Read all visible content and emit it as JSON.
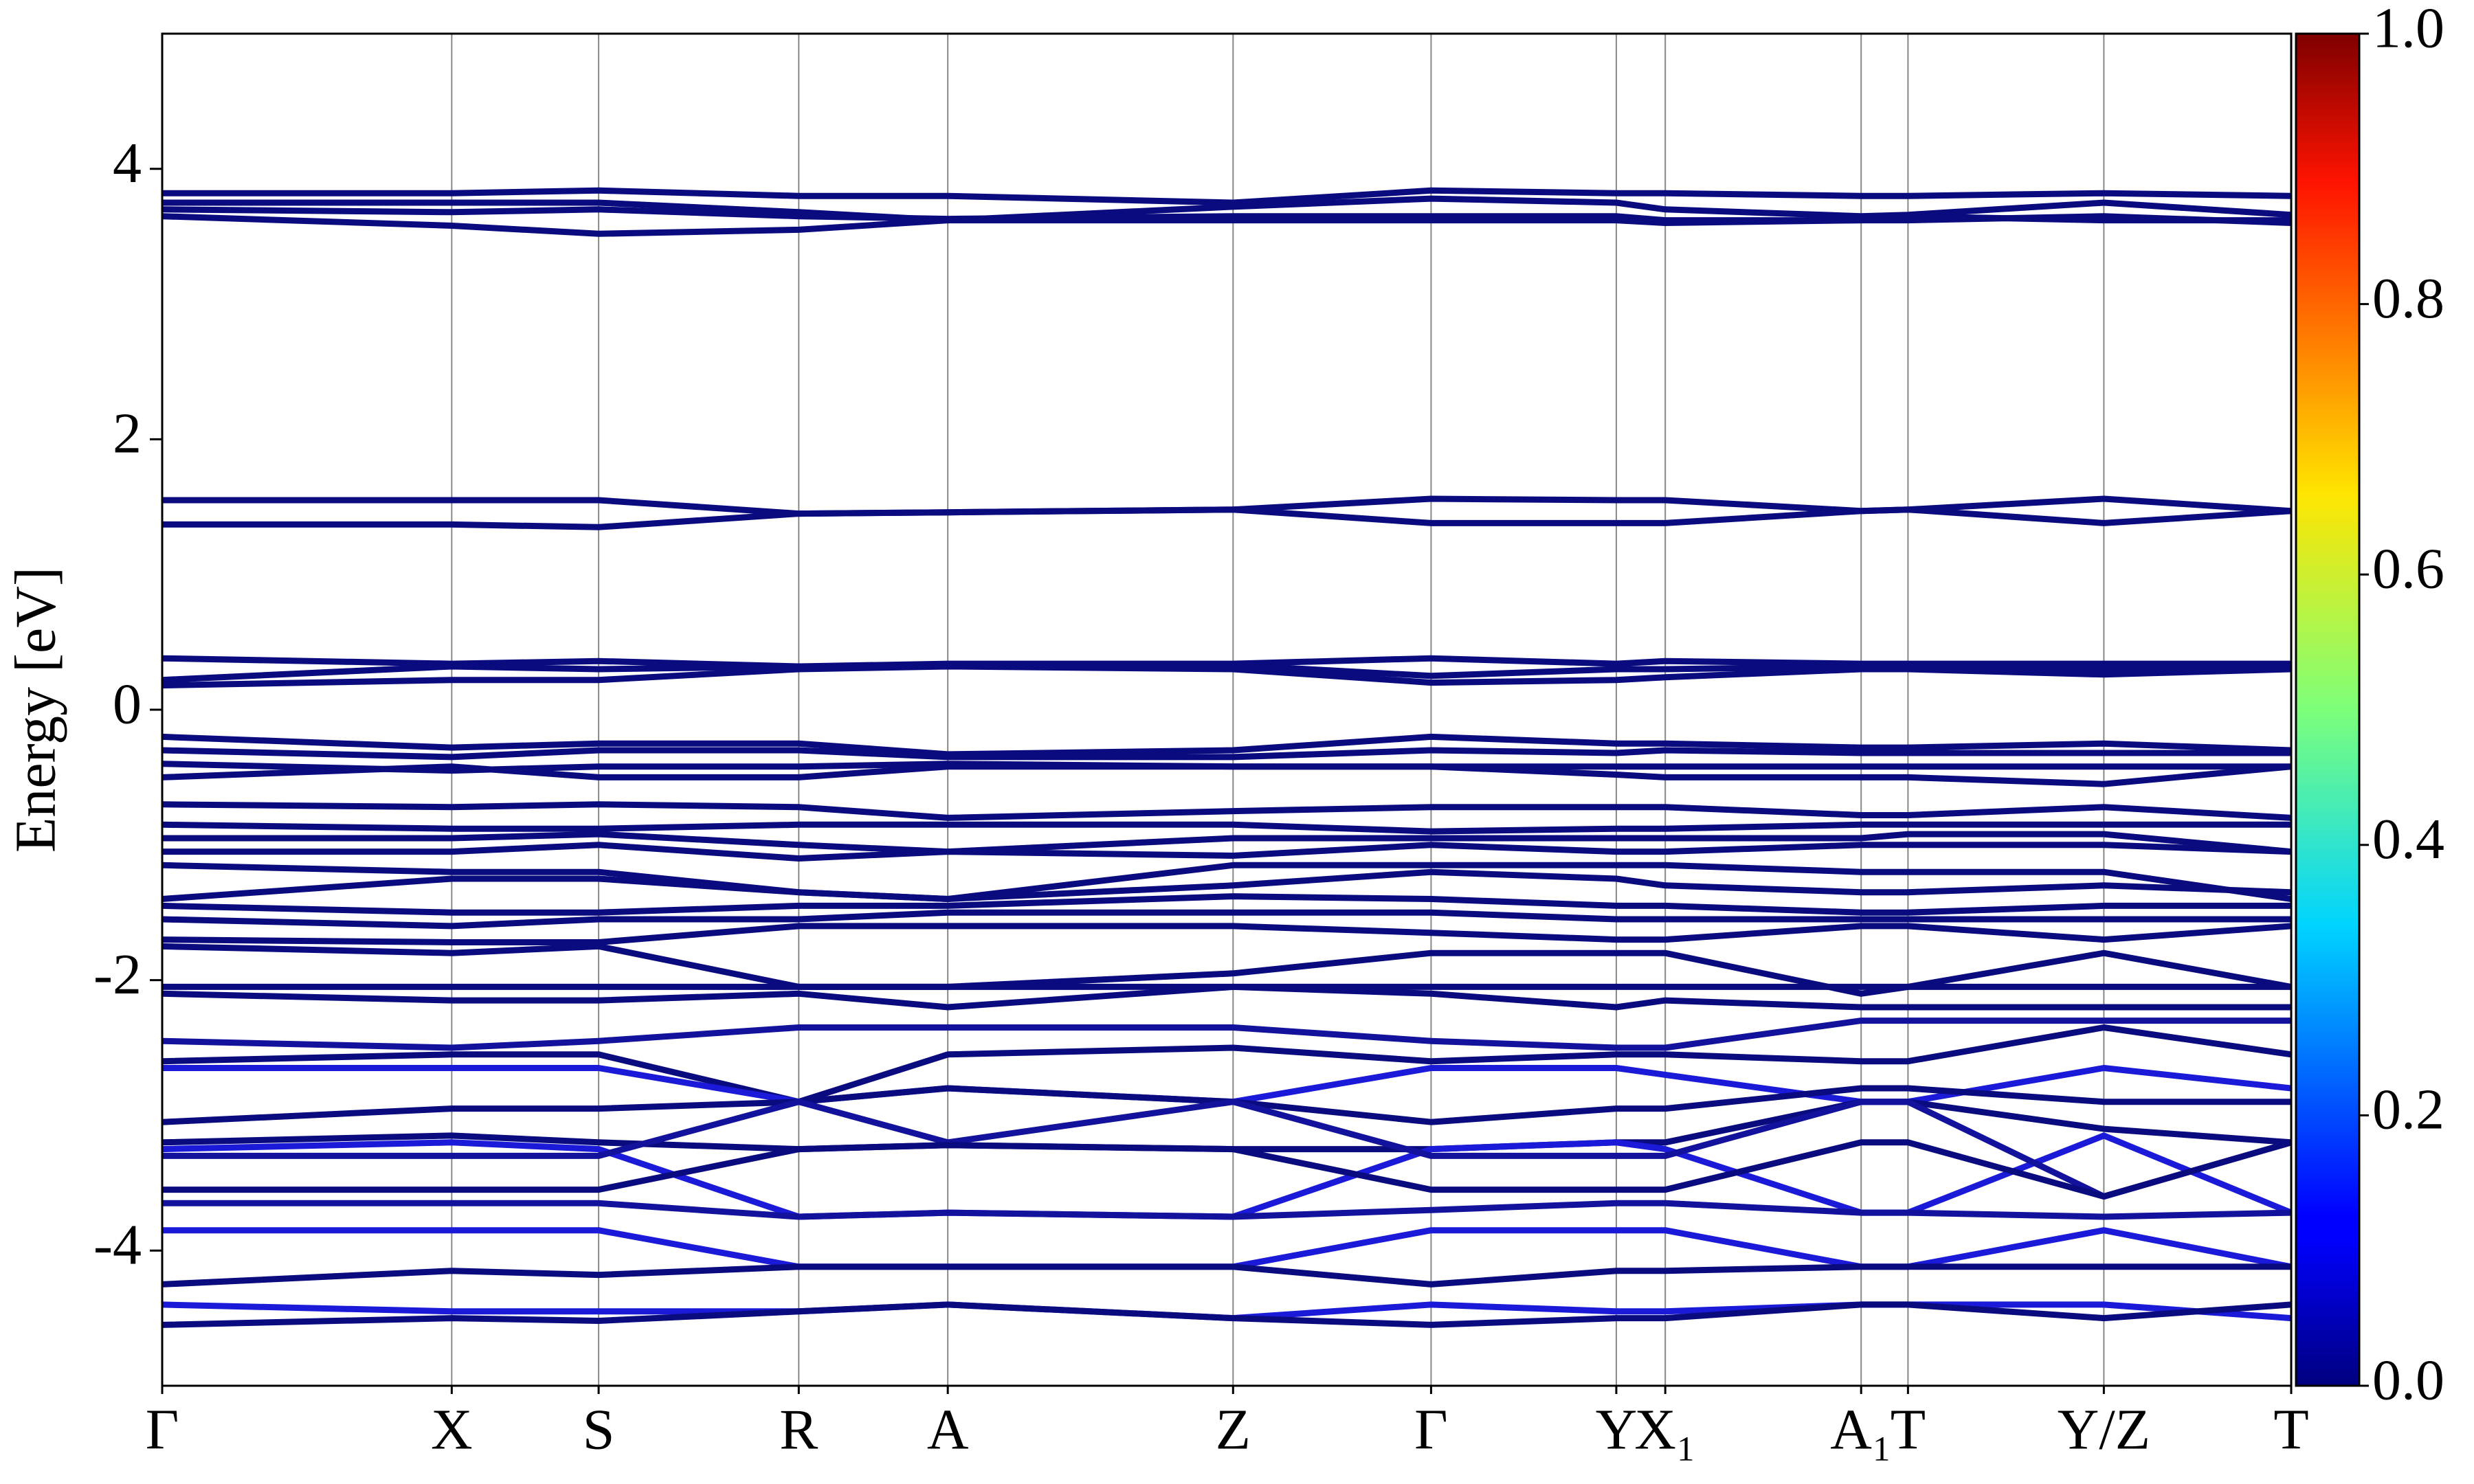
{
  "chart_data": {
    "type": "line",
    "ylabel": "Energy [eV]",
    "xlim": [
      0,
      1
    ],
    "xticks": [
      {
        "value": 0,
        "label": "Γ"
      },
      {
        "value": 0.136,
        "label": "X"
      },
      {
        "value": 0.205,
        "label": "S"
      },
      {
        "value": 0.299,
        "label": "R"
      },
      {
        "value": 0.369,
        "label": "A"
      },
      {
        "value": 0.503,
        "label": "Z"
      },
      {
        "value": 0.596,
        "label": "Γ"
      },
      {
        "value": 0.683,
        "label": "Y"
      },
      {
        "value": 0.706,
        "label": "X₁"
      },
      {
        "value": 0.798,
        "label": "A₁"
      },
      {
        "value": 0.82,
        "label": "T"
      },
      {
        "value": 0.912,
        "label": "Y/Z"
      },
      {
        "value": 1,
        "label": "T"
      }
    ],
    "ylim": [
      -5,
      5
    ],
    "yticks": [
      -4,
      -2,
      0,
      2,
      4
    ],
    "grid": "x",
    "x": [
      0,
      0.136,
      0.205,
      0.299,
      0.369,
      0.503,
      0.596,
      0.683,
      0.706,
      0.798,
      0.82,
      0.912,
      1
    ],
    "colorbar": {
      "colormap": "jet",
      "lim": [
        0,
        1
      ],
      "ticks": [
        {
          "value": 0,
          "label": "0.0"
        },
        {
          "value": 0.2,
          "label": "0.2"
        },
        {
          "value": 0.4,
          "label": "0.4"
        },
        {
          "value": 0.6,
          "label": "0.6"
        },
        {
          "value": 0.8,
          "label": "0.8"
        },
        {
          "value": 1,
          "label": "1.0"
        }
      ]
    },
    "series": [
      {
        "color": "#0b0b80",
        "values": [
          3.82,
          3.82,
          3.84,
          3.8,
          3.8,
          3.75,
          3.84,
          3.82,
          3.82,
          3.8,
          3.8,
          3.82,
          3.8
        ]
      },
      {
        "color": "#0b0b80",
        "values": [
          3.75,
          3.75,
          3.75,
          3.68,
          3.62,
          3.72,
          3.78,
          3.75,
          3.7,
          3.65,
          3.66,
          3.75,
          3.66
        ]
      },
      {
        "color": "#0b0b80",
        "values": [
          3.7,
          3.68,
          3.7,
          3.65,
          3.63,
          3.65,
          3.65,
          3.65,
          3.62,
          3.62,
          3.65,
          3.62,
          3.62
        ]
      },
      {
        "color": "#0b0b80",
        "values": [
          3.65,
          3.58,
          3.52,
          3.55,
          3.62,
          3.62,
          3.62,
          3.62,
          3.6,
          3.62,
          3.62,
          3.65,
          3.6
        ]
      },
      {
        "color": "#0b0b80",
        "values": [
          1.55,
          1.55,
          1.55,
          1.45,
          1.46,
          1.48,
          1.56,
          1.55,
          1.55,
          1.47,
          1.48,
          1.56,
          1.47
        ]
      },
      {
        "color": "#0b0b80",
        "values": [
          1.37,
          1.37,
          1.35,
          1.45,
          1.46,
          1.48,
          1.38,
          1.38,
          1.38,
          1.47,
          1.48,
          1.38,
          1.47
        ]
      },
      {
        "color": "#0b0b80",
        "values": [
          0.38,
          0.34,
          0.36,
          0.32,
          0.34,
          0.34,
          0.38,
          0.34,
          0.36,
          0.34,
          0.34,
          0.34,
          0.34
        ]
      },
      {
        "color": "#0b0b80",
        "values": [
          0.22,
          0.32,
          0.3,
          0.32,
          0.32,
          0.33,
          0.25,
          0.3,
          0.3,
          0.32,
          0.32,
          0.3,
          0.32
        ]
      },
      {
        "color": "#0b0b80",
        "values": [
          0.18,
          0.22,
          0.22,
          0.3,
          0.32,
          0.3,
          0.2,
          0.22,
          0.24,
          0.3,
          0.3,
          0.26,
          0.3
        ]
      },
      {
        "color": "#0b0b80",
        "values": [
          -0.2,
          -0.28,
          -0.25,
          -0.25,
          -0.33,
          -0.3,
          -0.2,
          -0.25,
          -0.25,
          -0.28,
          -0.28,
          -0.25,
          -0.3
        ]
      },
      {
        "color": "#0b0b80",
        "values": [
          -0.3,
          -0.35,
          -0.3,
          -0.3,
          -0.35,
          -0.35,
          -0.3,
          -0.32,
          -0.3,
          -0.32,
          -0.32,
          -0.32,
          -0.32
        ]
      },
      {
        "color": "#0b0b80",
        "values": [
          -0.4,
          -0.45,
          -0.42,
          -0.42,
          -0.4,
          -0.42,
          -0.42,
          -0.42,
          -0.42,
          -0.42,
          -0.42,
          -0.42,
          -0.42
        ]
      },
      {
        "color": "#0b0b80",
        "values": [
          -0.5,
          -0.42,
          -0.5,
          -0.5,
          -0.42,
          -0.42,
          -0.42,
          -0.48,
          -0.5,
          -0.5,
          -0.5,
          -0.55,
          -0.42
        ]
      },
      {
        "color": "#0b0b80",
        "values": [
          -0.7,
          -0.72,
          -0.7,
          -0.72,
          -0.8,
          -0.75,
          -0.72,
          -0.72,
          -0.72,
          -0.78,
          -0.78,
          -0.72,
          -0.8
        ]
      },
      {
        "color": "#0b0b80",
        "values": [
          -0.85,
          -0.88,
          -0.88,
          -0.85,
          -0.85,
          -0.85,
          -0.9,
          -0.88,
          -0.88,
          -0.85,
          -0.85,
          -0.85,
          -0.85
        ]
      },
      {
        "color": "#0b0b80",
        "values": [
          -0.95,
          -0.95,
          -0.92,
          -1.0,
          -1.05,
          -0.95,
          -0.95,
          -0.95,
          -0.95,
          -0.95,
          -0.92,
          -0.92,
          -1.05
        ]
      },
      {
        "color": "#0b0b80",
        "values": [
          -1.05,
          -1.05,
          -1.0,
          -1.1,
          -1.05,
          -1.08,
          -1.0,
          -1.05,
          -1.05,
          -1.0,
          -1.0,
          -1.0,
          -1.05
        ]
      },
      {
        "color": "#0b0b80",
        "values": [
          -1.15,
          -1.2,
          -1.2,
          -1.35,
          -1.4,
          -1.15,
          -1.15,
          -1.15,
          -1.15,
          -1.2,
          -1.2,
          -1.2,
          -1.4
        ]
      },
      {
        "color": "#0b0b80",
        "values": [
          -1.4,
          -1.25,
          -1.25,
          -1.35,
          -1.4,
          -1.3,
          -1.2,
          -1.25,
          -1.3,
          -1.35,
          -1.35,
          -1.3,
          -1.35
        ]
      },
      {
        "color": "#0b0b80",
        "values": [
          -1.45,
          -1.5,
          -1.5,
          -1.45,
          -1.45,
          -1.38,
          -1.4,
          -1.45,
          -1.45,
          -1.5,
          -1.5,
          -1.45,
          -1.45
        ]
      },
      {
        "color": "#0b0b80",
        "values": [
          -1.55,
          -1.6,
          -1.55,
          -1.55,
          -1.5,
          -1.5,
          -1.5,
          -1.55,
          -1.55,
          -1.55,
          -1.55,
          -1.55,
          -1.55
        ]
      },
      {
        "color": "#0b0b80",
        "values": [
          -1.7,
          -1.72,
          -1.72,
          -1.6,
          -1.6,
          -1.6,
          -1.65,
          -1.7,
          -1.7,
          -1.6,
          -1.6,
          -1.7,
          -1.6
        ]
      },
      {
        "color": "#0b0b80",
        "values": [
          -1.75,
          -1.8,
          -1.75,
          -2.05,
          -2.05,
          -1.95,
          -1.8,
          -1.8,
          -1.8,
          -2.1,
          -2.05,
          -1.8,
          -2.05
        ]
      },
      {
        "color": "#0b0b80",
        "values": [
          -2.05,
          -2.05,
          -2.05,
          -2.05,
          -2.05,
          -2.05,
          -2.05,
          -2.05,
          -2.05,
          -2.05,
          -2.05,
          -2.05,
          -2.05
        ]
      },
      {
        "color": "#0b0b80",
        "values": [
          -2.1,
          -2.15,
          -2.15,
          -2.1,
          -2.2,
          -2.05,
          -2.1,
          -2.2,
          -2.15,
          -2.2,
          -2.2,
          -2.2,
          -2.2
        ]
      },
      {
        "color": "#12129c",
        "values": [
          -2.45,
          -2.5,
          -2.45,
          -2.35,
          -2.35,
          -2.35,
          -2.45,
          -2.5,
          -2.5,
          -2.3,
          -2.3,
          -2.3,
          -2.3
        ]
      },
      {
        "color": "#0b0b80",
        "values": [
          -2.6,
          -2.55,
          -2.55,
          -2.9,
          -2.55,
          -2.5,
          -2.6,
          -2.55,
          -2.55,
          -2.6,
          -2.6,
          -2.35,
          -2.55
        ]
      },
      {
        "color": "#1a1ad8",
        "values": [
          -2.65,
          -2.65,
          -2.65,
          -2.9,
          -2.8,
          -2.9,
          -2.65,
          -2.65,
          -2.7,
          -2.9,
          -2.9,
          -2.65,
          -2.8
        ]
      },
      {
        "color": "#0b0b80",
        "values": [
          -3.05,
          -2.95,
          -2.95,
          -2.9,
          -2.8,
          -2.9,
          -3.05,
          -2.95,
          -2.95,
          -2.8,
          -2.8,
          -2.9,
          -2.9
        ]
      },
      {
        "color": "#0b0b80",
        "values": [
          -3.2,
          -3.15,
          -3.2,
          -3.25,
          -3.22,
          -3.25,
          -3.25,
          -3.2,
          -3.2,
          -2.9,
          -2.9,
          -3.1,
          -3.2
        ]
      },
      {
        "color": "#1a1ad8",
        "values": [
          -3.25,
          -3.2,
          -3.25,
          -3.75,
          -3.72,
          -3.75,
          -3.25,
          -3.2,
          -3.25,
          -3.72,
          -3.72,
          -3.15,
          -3.72
        ]
      },
      {
        "color": "#12129c",
        "values": [
          -3.3,
          -3.3,
          -3.3,
          -2.9,
          -3.2,
          -2.9,
          -3.3,
          -3.3,
          -3.3,
          -2.9,
          -2.9,
          -3.6,
          -3.2
        ]
      },
      {
        "color": "#0b0b80",
        "values": [
          -3.55,
          -3.55,
          -3.55,
          -3.25,
          -3.22,
          -3.25,
          -3.55,
          -3.55,
          -3.55,
          -3.2,
          -3.2,
          -3.6,
          -3.2
        ]
      },
      {
        "color": "#12129c",
        "values": [
          -3.65,
          -3.65,
          -3.65,
          -3.75,
          -3.72,
          -3.75,
          -3.7,
          -3.65,
          -3.65,
          -3.72,
          -3.72,
          -3.75,
          -3.72
        ]
      },
      {
        "color": "#1a1ad8",
        "values": [
          -3.85,
          -3.85,
          -3.85,
          -4.12,
          -4.12,
          -4.12,
          -3.85,
          -3.85,
          -3.85,
          -4.12,
          -4.12,
          -3.85,
          -4.12
        ]
      },
      {
        "color": "#0b0b80",
        "values": [
          -4.25,
          -4.15,
          -4.18,
          -4.12,
          -4.12,
          -4.12,
          -4.25,
          -4.15,
          -4.15,
          -4.12,
          -4.12,
          -4.12,
          -4.12
        ]
      },
      {
        "color": "#1a1ad8",
        "values": [
          -4.4,
          -4.45,
          -4.45,
          -4.45,
          -4.4,
          -4.5,
          -4.4,
          -4.45,
          -4.45,
          -4.4,
          -4.4,
          -4.4,
          -4.5
        ]
      },
      {
        "color": "#0b0b80",
        "values": [
          -4.55,
          -4.5,
          -4.52,
          -4.45,
          -4.4,
          -4.5,
          -4.55,
          -4.5,
          -4.5,
          -4.4,
          -4.4,
          -4.5,
          -4.4
        ]
      }
    ]
  }
}
